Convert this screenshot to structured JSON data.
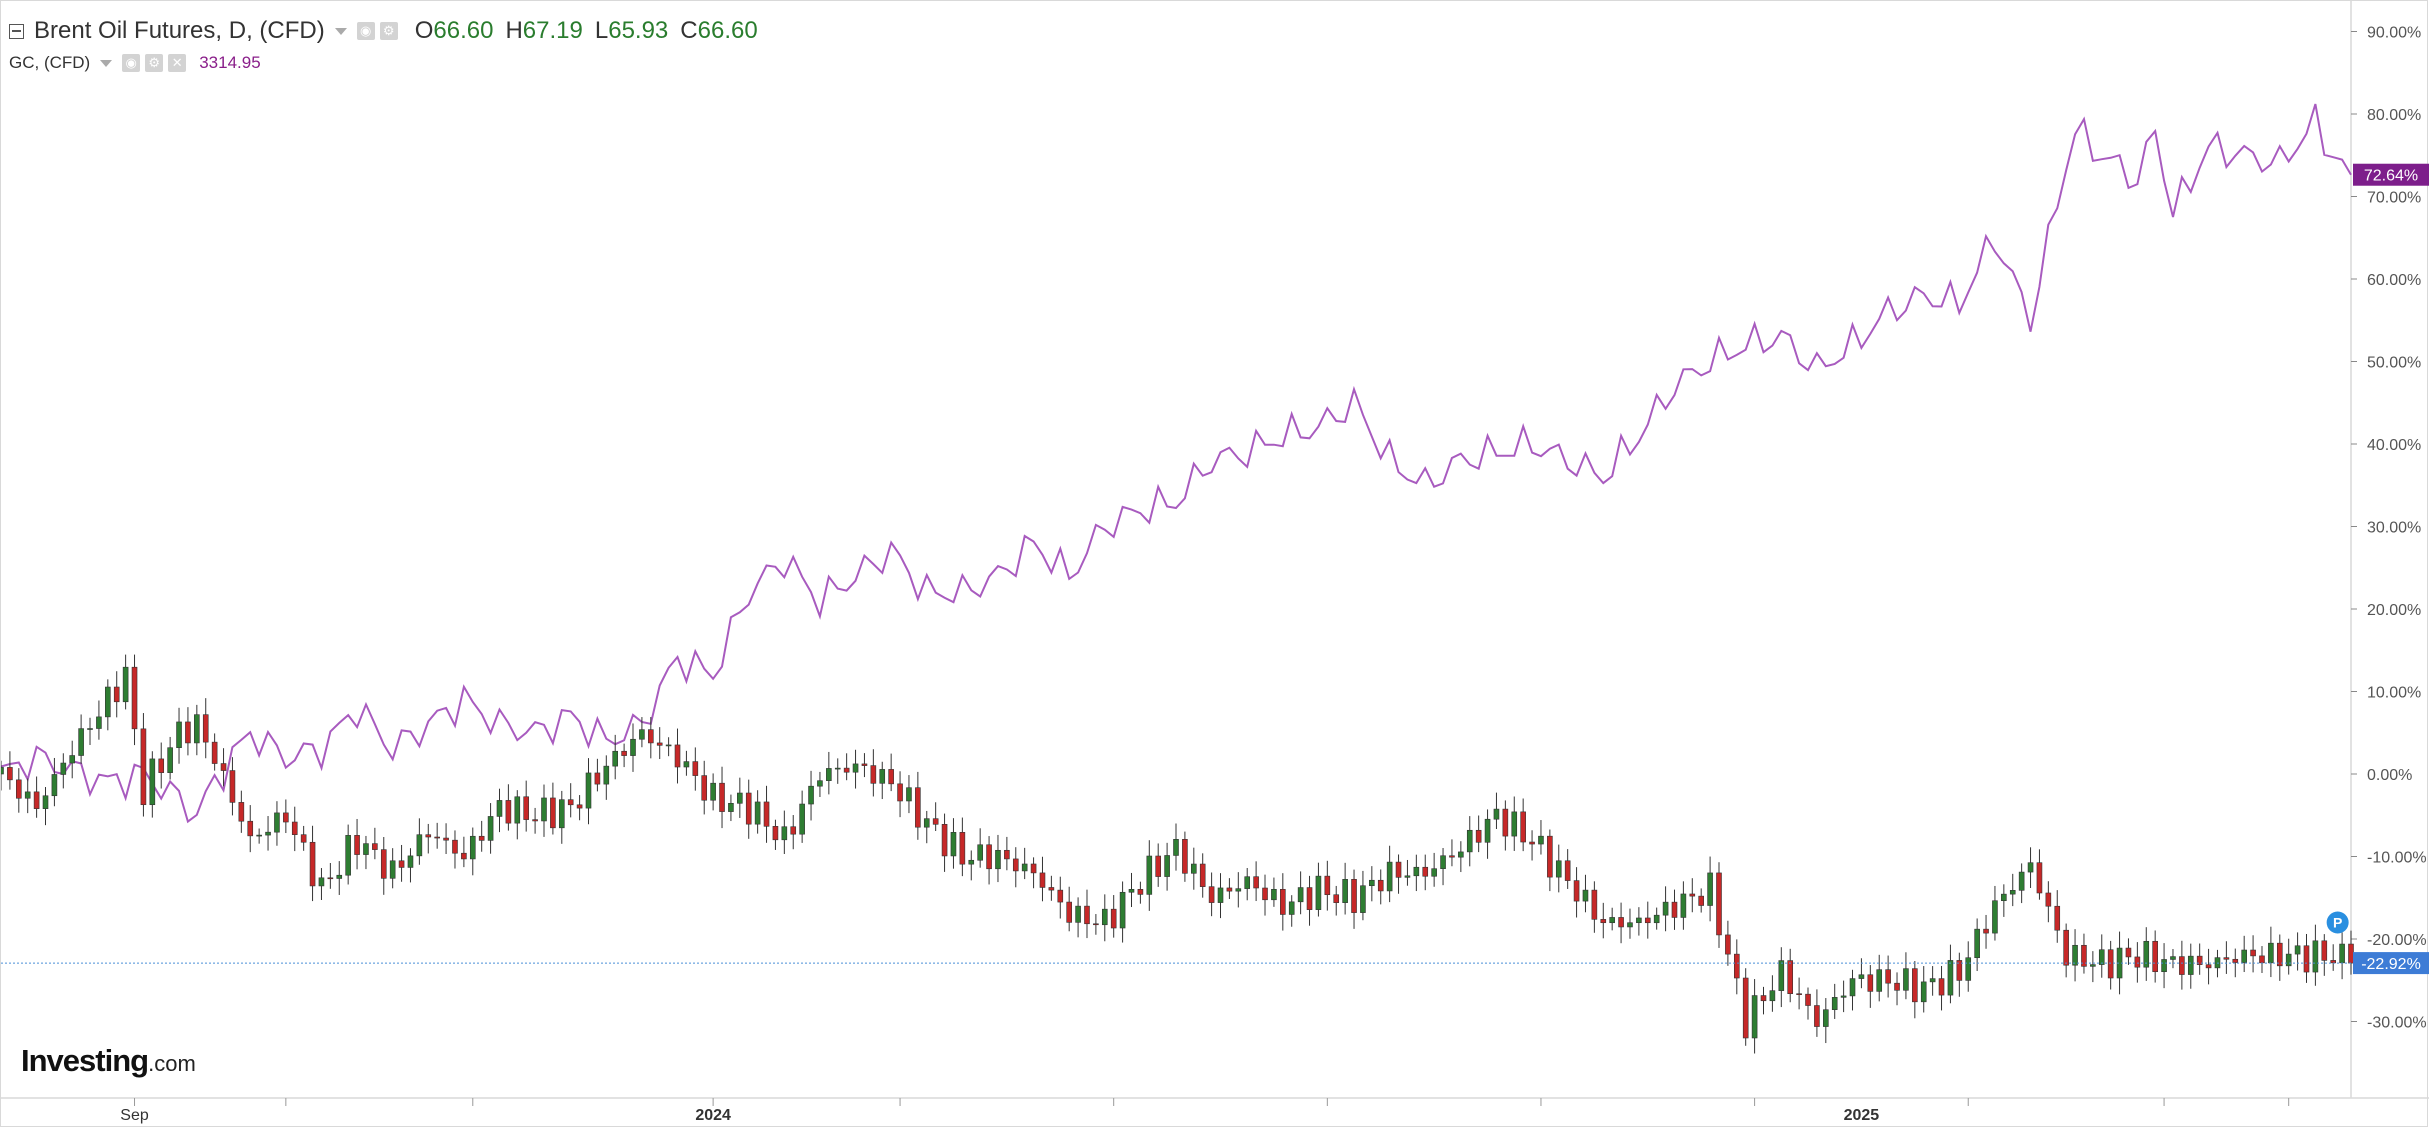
{
  "legend": {
    "title": "Brent Oil Futures, D, (CFD)",
    "ohlc": [
      {
        "key": "O",
        "value": "66.60"
      },
      {
        "key": "H",
        "value": "67.19"
      },
      {
        "key": "L",
        "value": "65.93"
      },
      {
        "key": "C",
        "value": "66.60"
      }
    ],
    "compare_symbol": "GC, (CFD)",
    "compare_value": "3314.95"
  },
  "colors": {
    "gc_line": "#a85bbf",
    "candle_up": "#2e7d32",
    "candle_down": "#c62828",
    "price_line": "#4a8fd6",
    "gc_badge": "#7d1e8b",
    "brent_badge": "#3d7cd6",
    "grid_line": "#d9d9d9"
  },
  "logo": {
    "main": "Investing",
    "suffix": ".com"
  },
  "marker": {
    "label": "P"
  },
  "chart_data": {
    "type": "line",
    "title": "Brent Oil Futures, D, (CFD)",
    "y_unit": "percent change",
    "ylim": [
      -35,
      92
    ],
    "y_ticks": [
      "90.00%",
      "80.00%",
      "70.00%",
      "60.00%",
      "50.00%",
      "40.00%",
      "30.00%",
      "20.00%",
      "10.00%",
      "0.00%",
      "-10.00%",
      "-20.00%",
      "-30.00%"
    ],
    "y_tick_values": [
      90,
      80,
      70,
      60,
      50,
      40,
      30,
      20,
      10,
      0,
      -10,
      -20,
      -30
    ],
    "x_labels": [
      "Sep",
      "2024",
      "2025"
    ],
    "x_label_positions": [
      15,
      80,
      209
    ],
    "x_range": [
      0,
      264
    ],
    "x_tick_positions": [
      15,
      32,
      53,
      80,
      101,
      125,
      149,
      173,
      197,
      221,
      243,
      257
    ],
    "x_index_note": "x = week index since start of visible range",
    "grid": false,
    "legend_position": "top-left",
    "current_labels": {
      "gc": "72.64%",
      "brent": "-22.92%"
    },
    "current_values": {
      "gc": 72.64,
      "brent": -22.92
    },
    "series": [
      {
        "name": "GC, (CFD)",
        "style": "line",
        "x": [
          0,
          4,
          8,
          12,
          16,
          20,
          22,
          24,
          28,
          32,
          36,
          40,
          44,
          48,
          52,
          56,
          60,
          64,
          68,
          72,
          76,
          80,
          84,
          88,
          92,
          96,
          100,
          104,
          108,
          112,
          116,
          120,
          124,
          128,
          132,
          136,
          140,
          144,
          148,
          152,
          156,
          160,
          164,
          168,
          172,
          176,
          180,
          184,
          188,
          192,
          196,
          200,
          204,
          208,
          212,
          216,
          220,
          224,
          228,
          232,
          233,
          236,
          240,
          242,
          244,
          246,
          248,
          252,
          256,
          260,
          262,
          264
        ],
        "y": [
          0,
          2,
          0.5,
          -1,
          0,
          -3,
          -5,
          -1,
          5,
          2,
          3,
          8,
          3,
          6,
          9,
          6,
          5,
          7,
          4,
          6,
          14,
          12,
          22,
          26,
          21,
          24,
          27,
          22,
          22,
          24,
          28,
          24,
          30,
          32,
          33,
          38,
          39,
          41,
          42,
          45,
          38,
          35,
          38,
          39,
          40,
          38,
          36,
          41,
          47,
          50,
          52,
          53,
          49,
          52,
          56,
          58,
          57,
          65,
          55,
          74,
          78,
          75,
          72,
          78,
          68,
          72,
          76,
          75,
          74,
          79,
          75,
          72.64
        ]
      },
      {
        "name": "Brent Oil Futures, D, (CFD)",
        "style": "candlestick",
        "x": [
          0,
          4,
          8,
          12,
          14,
          16,
          20,
          22,
          24,
          28,
          32,
          36,
          40,
          44,
          48,
          52,
          56,
          60,
          64,
          68,
          72,
          76,
          80,
          84,
          88,
          92,
          96,
          100,
          104,
          108,
          112,
          116,
          120,
          124,
          128,
          132,
          136,
          140,
          144,
          148,
          152,
          156,
          160,
          164,
          168,
          172,
          176,
          180,
          184,
          188,
          192,
          196,
          200,
          204,
          208,
          212,
          216,
          220,
          224,
          228,
          232,
          236,
          240,
          244,
          248,
          252,
          256,
          258,
          260,
          262,
          264
        ],
        "y": [
          0,
          -4,
          3,
          9,
          12,
          -2,
          5,
          6,
          2,
          -8,
          -5,
          -14,
          -8,
          -12,
          -7,
          -10,
          -4,
          -5,
          -4,
          1,
          5,
          2,
          -3,
          -4,
          -8,
          0,
          1,
          -1,
          -6,
          -10,
          -10,
          -12,
          -17,
          -18,
          -13,
          -9,
          -15,
          -13,
          -16,
          -14,
          -15,
          -12,
          -12,
          -9,
          -5,
          -8,
          -13,
          -18,
          -18,
          -16,
          -14,
          -30,
          -24,
          -30,
          -25,
          -25,
          -26,
          -24,
          -16,
          -11,
          -22,
          -22.92,
          -22,
          -23,
          -23,
          -22,
          -22,
          -22,
          -22,
          -22,
          -22.92
        ]
      }
    ]
  }
}
